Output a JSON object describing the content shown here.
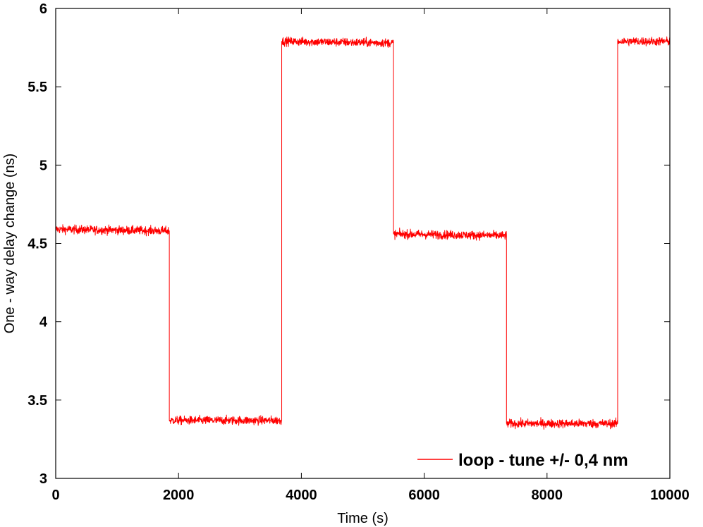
{
  "chart_data": {
    "type": "line",
    "title": "",
    "xlabel": "Time (s)",
    "ylabel": "One - way delay change (ns)",
    "xlim": [
      0,
      10000
    ],
    "ylim": [
      3,
      6
    ],
    "xticks": [
      0,
      2000,
      4000,
      6000,
      8000,
      10000
    ],
    "xtick_labels": [
      "0",
      "2000",
      "4000",
      "6000",
      "8000",
      "10000"
    ],
    "yticks": [
      3,
      3.5,
      4,
      4.5,
      5,
      5.5,
      6
    ],
    "ytick_labels": [
      "3",
      "3.5",
      "4",
      "4.5",
      "5",
      "5.5",
      "6"
    ],
    "grid": false,
    "legend_position": "bottom-right",
    "series": [
      {
        "name": "loop - tune +/- 0,4 nm",
        "color": "#ff0000",
        "x": [
          0,
          1850,
          1850,
          3680,
          3680,
          5500,
          5500,
          7340,
          7340,
          9150,
          9150,
          10000
        ],
        "y": [
          4.59,
          4.58,
          3.37,
          3.37,
          5.79,
          5.78,
          4.56,
          4.55,
          3.35,
          3.35,
          5.79,
          5.79
        ],
        "noise_amplitude": 0.03
      }
    ]
  }
}
